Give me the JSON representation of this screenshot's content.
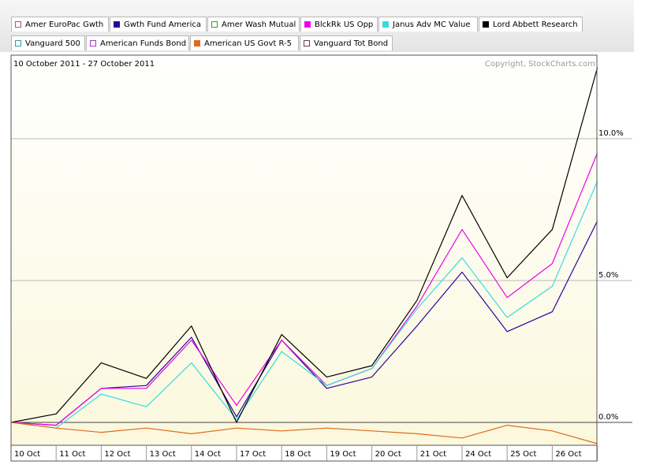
{
  "legend_tabs": [
    {
      "label": "Amer EuroPac Gwth",
      "color": "#c0504d",
      "filled": false
    },
    {
      "label": "Gwth Fund America",
      "color": "#2a00a0",
      "filled": true
    },
    {
      "label": "Amer Wash Mutual",
      "color": "#22aa22",
      "filled": false
    },
    {
      "label": "BlckRk US Opp",
      "color": "#ee00ee",
      "filled": true
    },
    {
      "label": "Janus Adv MC Value",
      "color": "#33dddd",
      "filled": true
    },
    {
      "label": "Lord Abbett Research",
      "color": "#000000",
      "filled": true
    },
    {
      "label": "Vanguard 500",
      "color": "#339999",
      "filled": false
    },
    {
      "label": "American Funds Bond",
      "color": "#aa33cc",
      "filled": false
    },
    {
      "label": "American US Govt R-5",
      "color": "#e06a1a",
      "filled": true
    },
    {
      "label": "Vanguard Tot Bond",
      "color": "#6b3b3b",
      "filled": false
    }
  ],
  "date_range": "10 October 2011 - 27 October 2011",
  "copyright": "Copyright, StockCharts.com",
  "chart_data": {
    "type": "line",
    "categories": [
      "10 Oct",
      "11 Oct",
      "12 Oct",
      "13 Oct",
      "14 Oct",
      "17 Oct",
      "18 Oct",
      "19 Oct",
      "20 Oct",
      "21 Oct",
      "24 Oct",
      "25 Oct",
      "26 Oct",
      "27 Oct"
    ],
    "x_tick_labels": [
      "10 Oct",
      "11 Oct",
      "12 Oct",
      "13 Oct",
      "14 Oct",
      "17 Oct",
      "18 Oct",
      "19 Oct",
      "20 Oct",
      "21 Oct",
      "24 Oct",
      "25 Oct",
      "26 Oct"
    ],
    "y_ticks": [
      {
        "value": 0,
        "label": "0.0%"
      },
      {
        "value": 5,
        "label": "5.0%"
      },
      {
        "value": 10,
        "label": "10.0%"
      }
    ],
    "ylim": [
      -0.7,
      12.7
    ],
    "grid": true,
    "y_axis_side": "right",
    "series": [
      {
        "name": "Gwth Fund America",
        "color": "#2a00a0",
        "values": [
          0,
          -0.1,
          1.2,
          1.3,
          3.0,
          0.2,
          2.9,
          1.2,
          1.6,
          3.4,
          5.3,
          3.2,
          3.9,
          7.1
        ]
      },
      {
        "name": "BlckRk US Opp",
        "color": "#ee00ee",
        "values": [
          0,
          -0.1,
          1.2,
          1.2,
          2.9,
          0.6,
          2.9,
          1.3,
          1.9,
          4.1,
          6.8,
          4.4,
          5.6,
          9.5
        ]
      },
      {
        "name": "Janus Adv MC Value",
        "color": "#33dddd",
        "values": [
          0,
          -0.2,
          1.0,
          0.55,
          2.1,
          0.1,
          2.5,
          1.3,
          1.9,
          4.0,
          5.8,
          3.7,
          4.8,
          8.5
        ]
      },
      {
        "name": "Lord Abbett Research",
        "color": "#000000",
        "values": [
          0,
          0.3,
          2.1,
          1.55,
          3.4,
          0.0,
          3.1,
          1.6,
          2.0,
          4.3,
          8.0,
          5.1,
          6.8,
          12.5
        ]
      },
      {
        "name": "American US Govt R-5",
        "color": "#e06a1a",
        "values": [
          0,
          -0.2,
          -0.35,
          -0.2,
          -0.4,
          -0.2,
          -0.3,
          -0.2,
          -0.3,
          -0.4,
          -0.55,
          -0.1,
          -0.3,
          -0.75
        ]
      }
    ]
  }
}
